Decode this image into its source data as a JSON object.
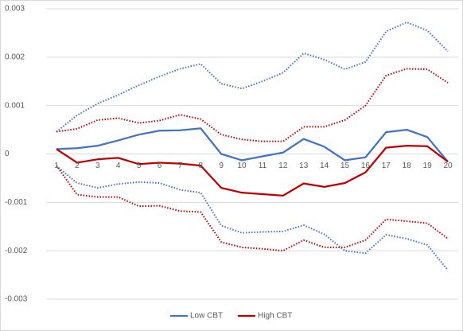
{
  "chart_data": {
    "type": "line",
    "categories": [
      1,
      2,
      3,
      4,
      5,
      6,
      7,
      8,
      9,
      10,
      11,
      12,
      13,
      14,
      15,
      16,
      17,
      18,
      19,
      20
    ],
    "ylim": [
      -0.003,
      0.003
    ],
    "yticks": [
      0.003,
      0.002,
      0.001,
      0,
      -0.001,
      -0.002,
      -0.003
    ],
    "grid": true,
    "legend": "bottom",
    "series": [
      {
        "color": "#4472c4",
        "dash": "dotted",
        "values": [
          0.00046,
          0.0008,
          0.00104,
          0.00122,
          0.00142,
          0.0016,
          0.00176,
          0.00186,
          0.00145,
          0.00135,
          0.0015,
          0.00168,
          0.00208,
          0.00195,
          0.00175,
          0.0019,
          0.00253,
          0.00272,
          0.00255,
          0.00212
        ]
      },
      {
        "color": "#c00000",
        "dash": "dotted",
        "values": [
          0.00046,
          0.00052,
          0.0007,
          0.00074,
          0.00064,
          0.00069,
          0.00081,
          0.00072,
          0.0004,
          0.0003,
          0.00026,
          0.00026,
          0.00056,
          0.00056,
          0.0007,
          0.001,
          0.00162,
          0.00176,
          0.00175,
          0.00147
        ]
      },
      {
        "color": "#4472c4",
        "dash": "dotted",
        "values": [
          -0.00025,
          -0.0006,
          -0.0007,
          -0.00062,
          -0.00058,
          -0.0006,
          -0.00074,
          -0.0008,
          -0.00148,
          -0.00163,
          -0.00161,
          -0.0016,
          -0.00147,
          -0.00166,
          -0.002,
          -0.00205,
          -0.00167,
          -0.00175,
          -0.00188,
          -0.0024
        ]
      },
      {
        "color": "#c00000",
        "dash": "dotted",
        "values": [
          -0.00024,
          -0.00084,
          -0.00089,
          -0.00089,
          -0.00108,
          -0.00107,
          -0.00118,
          -0.0012,
          -0.00182,
          -0.00193,
          -0.00196,
          -0.002,
          -0.00178,
          -0.00193,
          -0.00193,
          -0.00178,
          -0.00135,
          -0.00139,
          -0.00143,
          -0.00175
        ]
      },
      {
        "name": "Low CBT",
        "color": "#4472c4",
        "dash": "solid",
        "values": [
          0.0001,
          0.00012,
          0.00017,
          0.00028,
          0.0004,
          0.00048,
          0.00049,
          0.00053,
          0,
          -0.00013,
          -5e-05,
          3e-05,
          0.00031,
          0.00015,
          -0.00013,
          -7e-05,
          0.00045,
          0.0005,
          0.00035,
          -0.00016
        ]
      },
      {
        "name": "High CBT",
        "color": "#c00000",
        "dash": "solid",
        "values": [
          0.0001,
          -0.00018,
          -0.00011,
          -8e-05,
          -0.00021,
          -0.00018,
          -0.0002,
          -0.00024,
          -0.0007,
          -0.0008,
          -0.00083,
          -0.00086,
          -0.00061,
          -0.00068,
          -0.0006,
          -0.00038,
          0.00013,
          0.00017,
          0.00016,
          -0.00016
        ]
      }
    ]
  }
}
